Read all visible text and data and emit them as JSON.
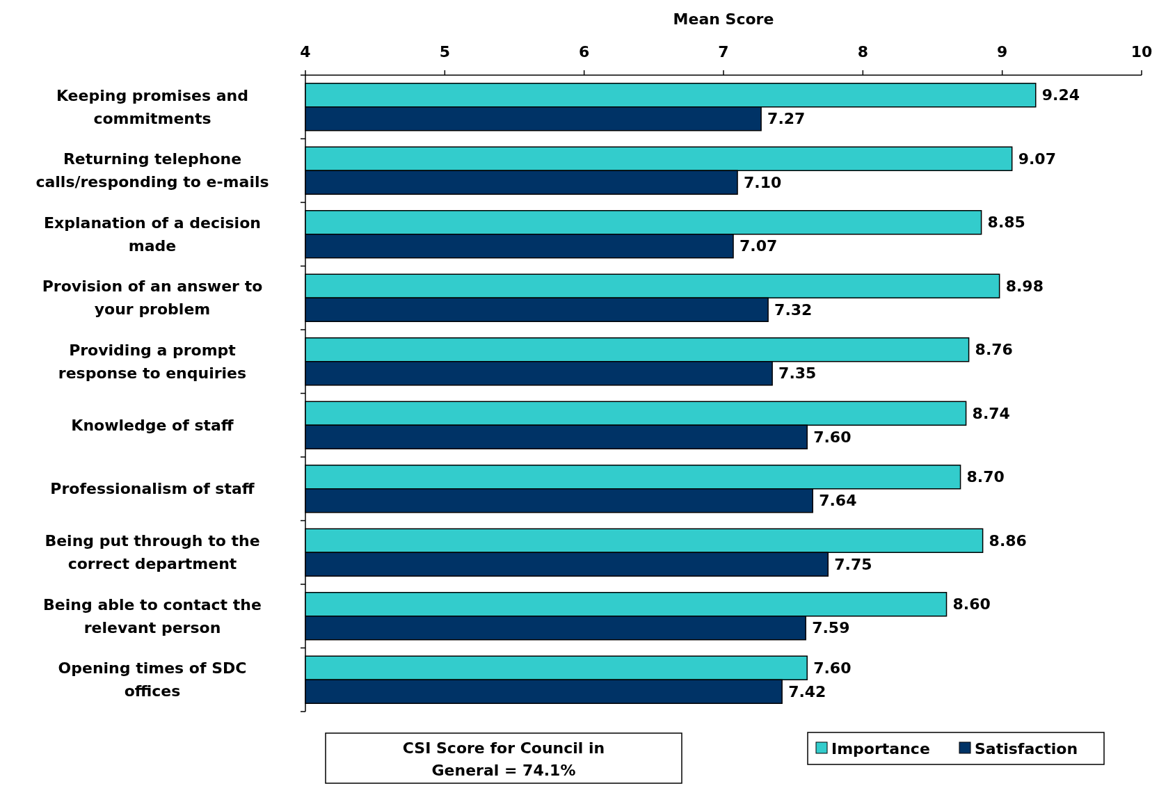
{
  "chart_data": {
    "type": "bar",
    "orientation": "horizontal",
    "xlabel": "Mean Score",
    "categories": [
      "Keeping promises and commitments",
      "Returning telephone calls/responding to e-mails",
      "Explanation of a decision made",
      "Provision of an answer to your problem",
      "Providing a prompt response to enquiries",
      "Knowledge of staff",
      "Professionalism of staff",
      "Being put through to the correct department",
      "Being able to contact the relevant person",
      "Opening times of SDC offices"
    ],
    "series": [
      {
        "name": "Importance",
        "color": "#33cccc",
        "values": [
          9.24,
          9.07,
          8.85,
          8.98,
          8.76,
          8.74,
          8.7,
          8.86,
          8.6,
          7.6
        ],
        "value_labels": [
          "9.24",
          "9.07",
          "8.85",
          "8.98",
          "8.76",
          "8.74",
          "8.70",
          "8.86",
          "8.60",
          "7.60"
        ]
      },
      {
        "name": "Satisfaction",
        "color": "#003366",
        "values": [
          7.27,
          7.1,
          7.07,
          7.32,
          7.35,
          7.6,
          7.64,
          7.75,
          7.59,
          7.42
        ],
        "value_labels": [
          "7.27",
          "7.10",
          "7.07",
          "7.32",
          "7.35",
          "7.60",
          "7.64",
          "7.75",
          "7.59",
          "7.42"
        ]
      }
    ],
    "xlim": [
      4,
      10
    ],
    "xticks": [
      4,
      5,
      6,
      7,
      8,
      9,
      10
    ],
    "legend": "bottom right",
    "grid": false,
    "annotations": [
      "CSI Score for Council in General = 74.1%"
    ]
  }
}
